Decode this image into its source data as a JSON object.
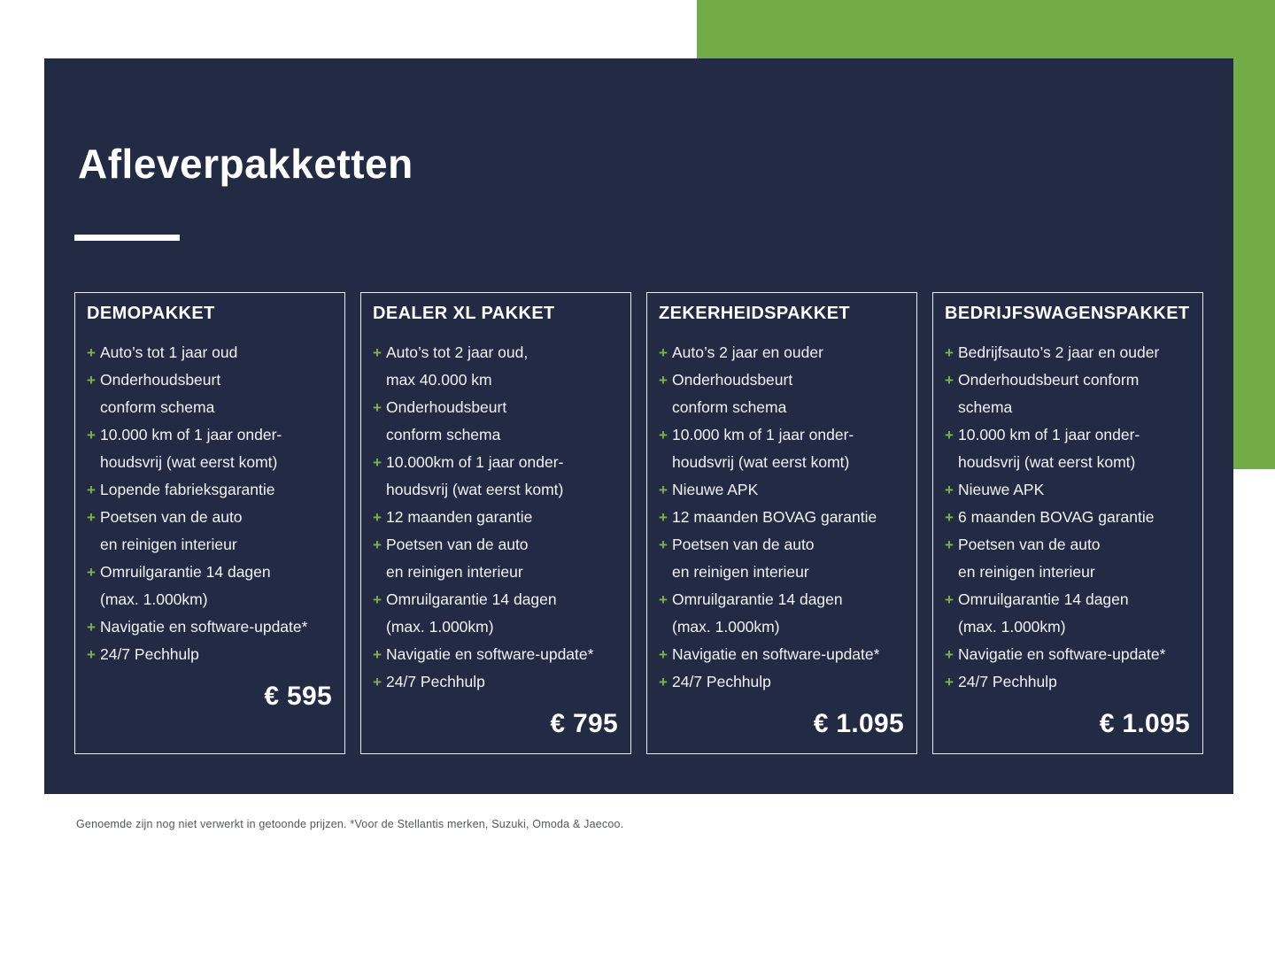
{
  "page": {
    "title": "Afleverpakketten",
    "footnote": "Genoemde zijn nog niet verwerkt in getoonde prijzen. *Voor de Stellantis merken, Suzuki, Omoda & Jaecoo."
  },
  "colors": {
    "accent_green": "#73AC46",
    "panel_navy": "#232B44",
    "plus_green": "#7DB24C",
    "text_white": "#FFFFFF"
  },
  "icons": {
    "plus_glyph": "+"
  },
  "cards": [
    {
      "title": "DEMOPAKKET",
      "price": "€ 595",
      "items": [
        "Auto’s tot 1 jaar oud",
        "Onderhoudsbeurt\nconform schema",
        "10.000 km of 1 jaar onder-\nhoudsvrij (wat eerst komt)",
        "Lopende fabrieksgarantie",
        "Poetsen van de auto\nen reinigen interieur",
        "Omruilgarantie 14 dagen\n(max. 1.000km)",
        "Navigatie en software-update*",
        "24/7 Pechhulp"
      ]
    },
    {
      "title": "DEALER XL PAKKET",
      "price": "€ 795",
      "items": [
        "Auto’s tot 2 jaar oud,\nmax 40.000 km",
        "Onderhoudsbeurt\nconform schema",
        "10.000km of 1 jaar onder-\nhoudsvrij (wat eerst komt)",
        "12 maanden garantie",
        "Poetsen van de auto\nen reinigen interieur",
        "Omruilgarantie 14 dagen\n(max. 1.000km)",
        "Navigatie en software-update*",
        "24/7 Pechhulp"
      ]
    },
    {
      "title": "ZEKERHEIDSPAKKET",
      "price": "€ 1.095",
      "items": [
        "Auto’s 2 jaar en ouder",
        "Onderhoudsbeurt\nconform schema",
        "10.000 km of 1 jaar onder-\nhoudsvrij (wat eerst komt)",
        "Nieuwe APK",
        "12 maanden BOVAG garantie",
        "Poetsen van de auto\nen reinigen interieur",
        "Omruilgarantie 14 dagen\n(max. 1.000km)",
        "Navigatie en software-update*",
        "24/7 Pechhulp"
      ]
    },
    {
      "title": "BEDRIJFSWAGENSPAKKET",
      "price": "€ 1.095",
      "items": [
        "Bedrijfsauto’s 2 jaar en ouder",
        "Onderhoudsbeurt conform\nschema",
        "10.000 km of 1 jaar onder-\nhoudsvrij (wat eerst komt)",
        "Nieuwe APK",
        "6 maanden BOVAG garantie",
        "Poetsen van de auto\nen reinigen interieur",
        "Omruilgarantie 14 dagen\n(max. 1.000km)",
        "Navigatie en software-update*",
        "24/7 Pechhulp"
      ]
    }
  ]
}
